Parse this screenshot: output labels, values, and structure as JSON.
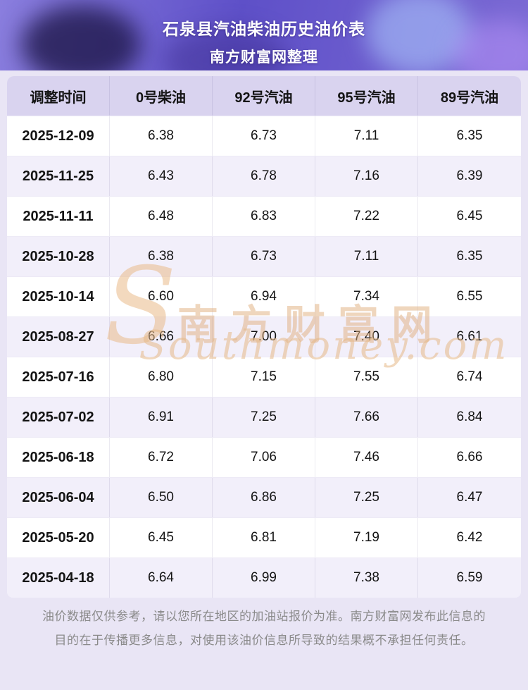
{
  "header": {
    "title_line1": "石泉县汽油柴油历史油价表",
    "title_line2": "南方财富网整理"
  },
  "chart_data": {
    "type": "table",
    "title": "石泉县汽油柴油历史油价表",
    "subtitle": "南方财富网整理",
    "columns": [
      "调整时间",
      "0号柴油",
      "92号汽油",
      "95号汽油",
      "89号汽油"
    ],
    "rows": [
      [
        "2025-12-09",
        "6.38",
        "6.73",
        "7.11",
        "6.35"
      ],
      [
        "2025-11-25",
        "6.43",
        "6.78",
        "7.16",
        "6.39"
      ],
      [
        "2025-11-11",
        "6.48",
        "6.83",
        "7.22",
        "6.45"
      ],
      [
        "2025-10-28",
        "6.38",
        "6.73",
        "7.11",
        "6.35"
      ],
      [
        "2025-10-14",
        "6.60",
        "6.94",
        "7.34",
        "6.55"
      ],
      [
        "2025-08-27",
        "6.66",
        "7.00",
        "7.40",
        "6.61"
      ],
      [
        "2025-07-16",
        "6.80",
        "7.15",
        "7.55",
        "6.74"
      ],
      [
        "2025-07-02",
        "6.91",
        "7.25",
        "7.66",
        "6.84"
      ],
      [
        "2025-06-18",
        "6.72",
        "7.06",
        "7.46",
        "6.66"
      ],
      [
        "2025-06-04",
        "6.50",
        "6.86",
        "7.25",
        "6.47"
      ],
      [
        "2025-05-20",
        "6.45",
        "6.81",
        "7.19",
        "6.42"
      ],
      [
        "2025-04-18",
        "6.64",
        "6.99",
        "7.38",
        "6.59"
      ]
    ]
  },
  "watermark": {
    "s": "S",
    "cn": "南方财富网",
    "en": "Southmoney.com"
  },
  "footer": {
    "disclaimer": "油价数据仅供参考，请以您所在地区的加油站报价为准。南方财富网发布此信息的目的在于传播更多信息，对使用该油价信息所导致的结果概不承担任何责任。"
  },
  "colors": {
    "page_bg": "#e9e5f5",
    "banner_purple": "#5e50c8",
    "table_header_bg": "#d9d3ef",
    "row_alt_bg": "#f2effa",
    "watermark_orange": "#e0ad7c",
    "footer_text": "#8a8a8a"
  }
}
